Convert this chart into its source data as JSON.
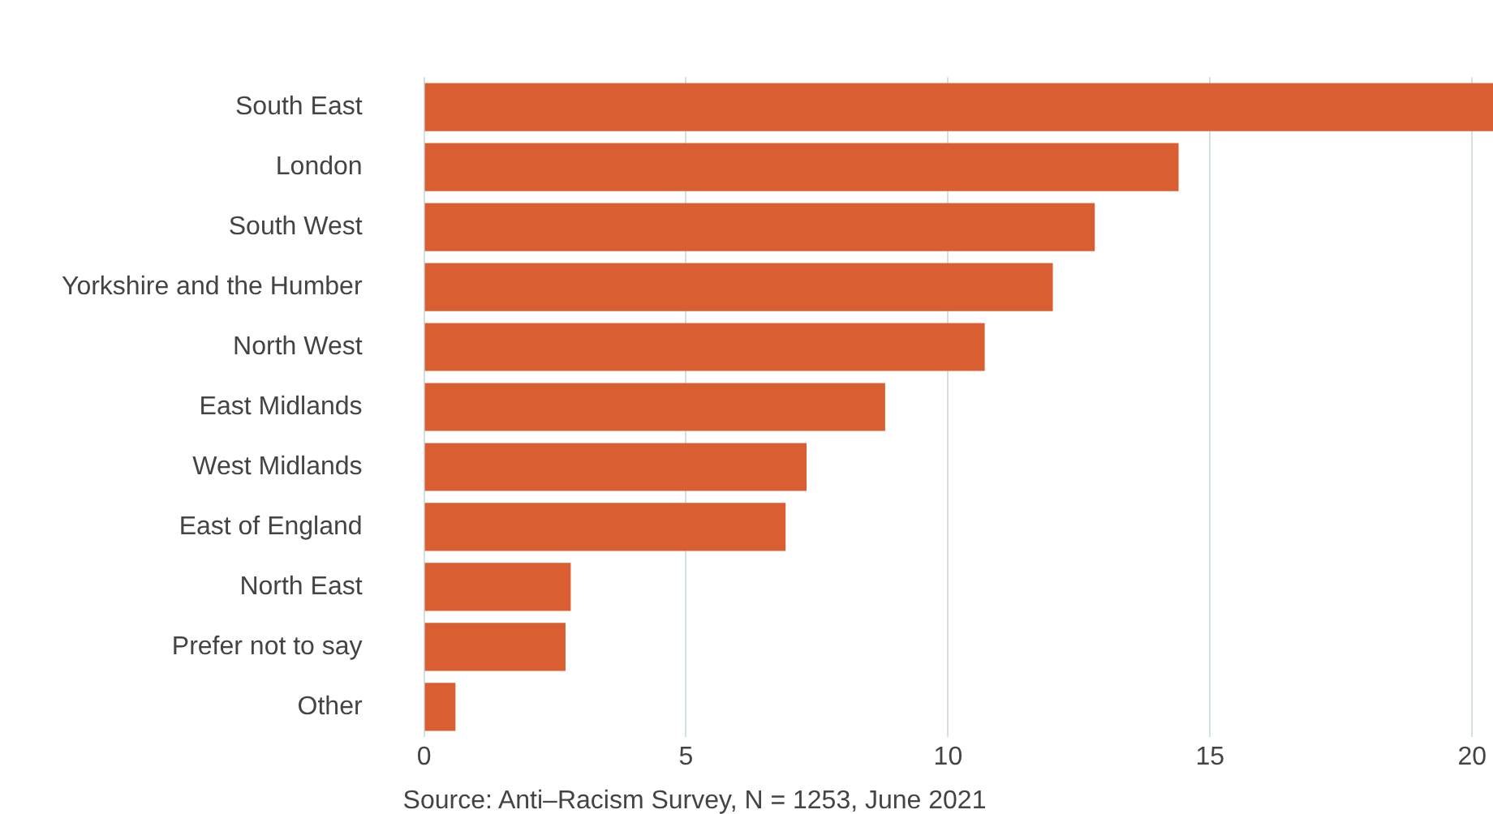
{
  "chart_data": {
    "type": "bar",
    "orientation": "horizontal",
    "categories": [
      "South East",
      "London",
      "South West",
      "Yorkshire and the Humber",
      "North West",
      "East Midlands",
      "West Midlands",
      "East of England",
      "North East",
      "Prefer not to say",
      "Other"
    ],
    "values": [
      20.4,
      14.4,
      12.8,
      12.0,
      10.7,
      8.8,
      7.3,
      6.9,
      2.8,
      2.7,
      0.6
    ],
    "color": "#d95f32",
    "xlim": [
      0,
      20.4
    ],
    "xticks": [
      0,
      5,
      10,
      15,
      20
    ],
    "grid": "x",
    "legend": false,
    "annotations": [
      "Source: Anti–Racism Survey, N = 1253, June 2021"
    ]
  }
}
